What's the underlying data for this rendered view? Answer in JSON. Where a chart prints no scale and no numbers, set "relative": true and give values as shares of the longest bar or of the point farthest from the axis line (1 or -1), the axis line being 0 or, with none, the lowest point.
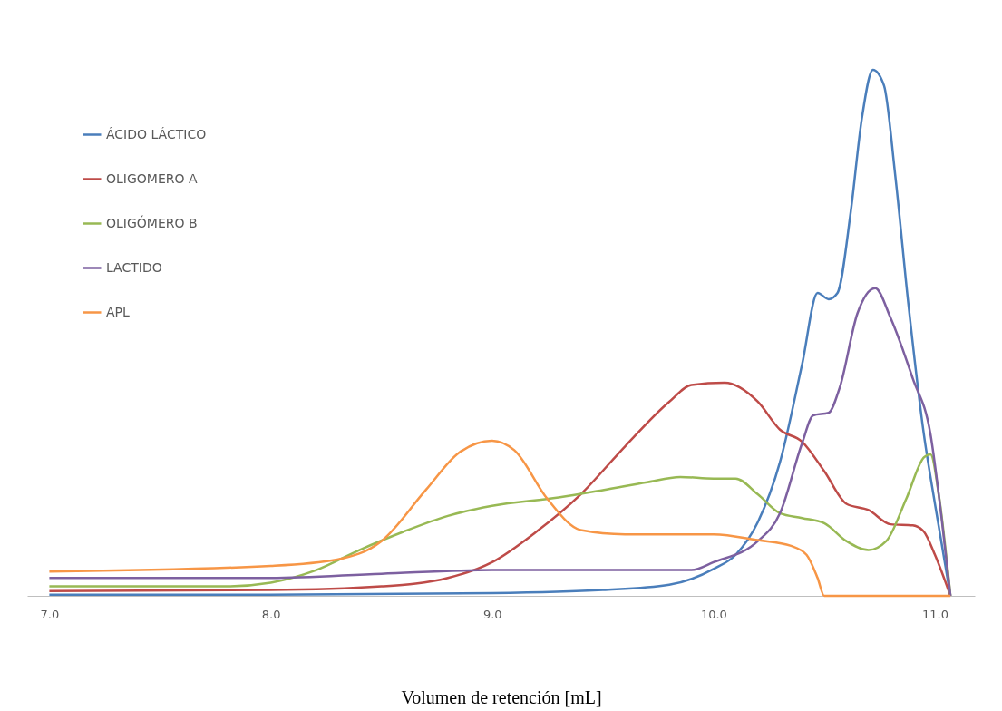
{
  "chart_data": {
    "type": "line",
    "relative": true,
    "xlabel": "Volumen de retención [mL]",
    "xlim": [
      6.9,
      11.18
    ],
    "xticks": [
      {
        "value": 7,
        "label": "7.0"
      },
      {
        "value": 8,
        "label": "8.0"
      },
      {
        "value": 9,
        "label": "9.0"
      },
      {
        "value": 10,
        "label": "10.0"
      },
      {
        "value": 11,
        "label": "11.0"
      }
    ],
    "grid": false,
    "legend": "top left",
    "marker": "none",
    "line_style": "solid",
    "series": [
      {
        "name": "ÁCIDO LÁCTICO",
        "color": "#4a7ebb",
        "x": [
          7.0,
          8.0,
          9.0,
          9.5,
          9.8,
          10.0,
          10.1,
          10.2,
          10.3,
          10.4,
          10.47,
          10.52,
          10.56,
          10.62,
          10.67,
          10.72,
          10.77,
          10.82,
          10.88,
          10.95,
          11.0,
          11.07
        ],
        "values": [
          0.002,
          0.002,
          0.005,
          0.011,
          0.021,
          0.051,
          0.078,
          0.14,
          0.254,
          0.44,
          0.576,
          0.564,
          0.576,
          0.731,
          0.908,
          1,
          0.97,
          0.802,
          0.555,
          0.307,
          0.175,
          0
        ]
      },
      {
        "name": "OLIGOMERO A",
        "color": "#be4b48",
        "x": [
          7.0,
          8.0,
          8.5,
          8.8,
          9.0,
          9.2,
          9.4,
          9.6,
          9.8,
          9.9,
          10.05,
          10.2,
          10.3,
          10.4,
          10.5,
          10.6,
          10.7,
          10.8,
          10.9,
          10.95,
          11.0,
          11.07
        ],
        "values": [
          0.009,
          0.011,
          0.018,
          0.034,
          0.064,
          0.122,
          0.193,
          0.284,
          0.369,
          0.401,
          0.405,
          0.369,
          0.316,
          0.293,
          0.237,
          0.175,
          0.163,
          0.136,
          0.134,
          0.122,
          0.078,
          0
        ]
      },
      {
        "name": "OLIGÓMERO B",
        "color": "#98b954",
        "x": [
          7.0,
          7.8,
          8.0,
          8.2,
          8.4,
          8.6,
          8.8,
          9.0,
          9.3,
          9.5,
          9.7,
          9.85,
          10.0,
          10.1,
          10.2,
          10.3,
          10.4,
          10.5,
          10.6,
          10.7,
          10.78,
          10.87,
          10.95,
          10.98,
          11.02,
          11.07
        ],
        "values": [
          0.018,
          0.018,
          0.025,
          0.048,
          0.087,
          0.122,
          0.152,
          0.171,
          0.187,
          0.201,
          0.216,
          0.226,
          0.223,
          0.223,
          0.193,
          0.157,
          0.148,
          0.138,
          0.104,
          0.087,
          0.104,
          0.184,
          0.263,
          0.269,
          0.184,
          0
        ]
      },
      {
        "name": "LACTIDO",
        "color": "#7d60a0",
        "x": [
          7.0,
          8.0,
          8.5,
          9.0,
          9.5,
          9.9,
          10.0,
          10.2,
          10.3,
          10.4,
          10.45,
          10.52,
          10.57,
          10.65,
          10.73,
          10.8,
          10.9,
          10.98,
          11.03,
          11.07
        ],
        "values": [
          0.034,
          0.034,
          0.042,
          0.049,
          0.049,
          0.049,
          0.064,
          0.104,
          0.157,
          0.29,
          0.343,
          0.348,
          0.396,
          0.537,
          0.585,
          0.528,
          0.413,
          0.307,
          0.148,
          0
        ]
      },
      {
        "name": "APL",
        "color": "#f79646",
        "x": [
          7.0,
          8.0,
          8.3,
          8.5,
          8.7,
          8.85,
          9.0,
          9.1,
          9.25,
          9.4,
          9.6,
          10.0,
          10.2,
          10.35,
          10.42,
          10.47,
          10.5,
          11.07
        ],
        "values": [
          0.046,
          0.057,
          0.069,
          0.104,
          0.201,
          0.272,
          0.295,
          0.277,
          0.184,
          0.125,
          0.117,
          0.117,
          0.106,
          0.095,
          0.078,
          0.034,
          0,
          0
        ]
      }
    ]
  }
}
